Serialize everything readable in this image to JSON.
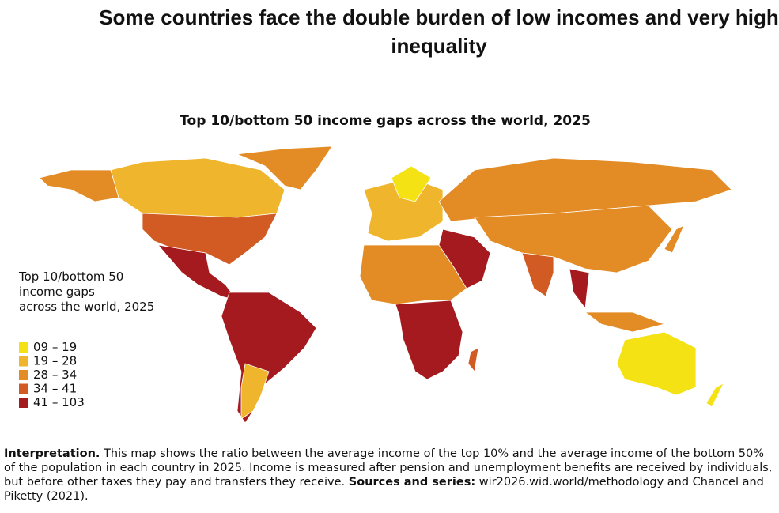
{
  "title": "Some countries face the double burden of low incomes and very high inequality",
  "map": {
    "title": "Top 10/bottom 50 income gaps across the world, 2025",
    "legend": {
      "title_lines": [
        "Top 10/bottom 50",
        "income gaps",
        "across the world, 2025"
      ],
      "items": [
        {
          "label": "09 – 19",
          "color": "#f4e215"
        },
        {
          "label": "19 – 28",
          "color": "#efb52c"
        },
        {
          "label": "28 – 34",
          "color": "#e38b25"
        },
        {
          "label": "34 – 41",
          "color": "#d25a23"
        },
        {
          "label": "41 – 103",
          "color": "#a51a1e"
        }
      ]
    }
  },
  "note": {
    "interpretation_label": "Interpretation.",
    "interpretation": "This map shows the ratio between the average income of the top 10% and the average income of the bottom 50% of the population in each country in 2025. Income is measured after pension and unemployment benefits are received by individuals, but before other taxes they pay and transfers they receive.",
    "sources_label": "Sources and series:",
    "sources": "wir2026.wid.world/methodology and Chancel and Piketty (2021)."
  }
}
